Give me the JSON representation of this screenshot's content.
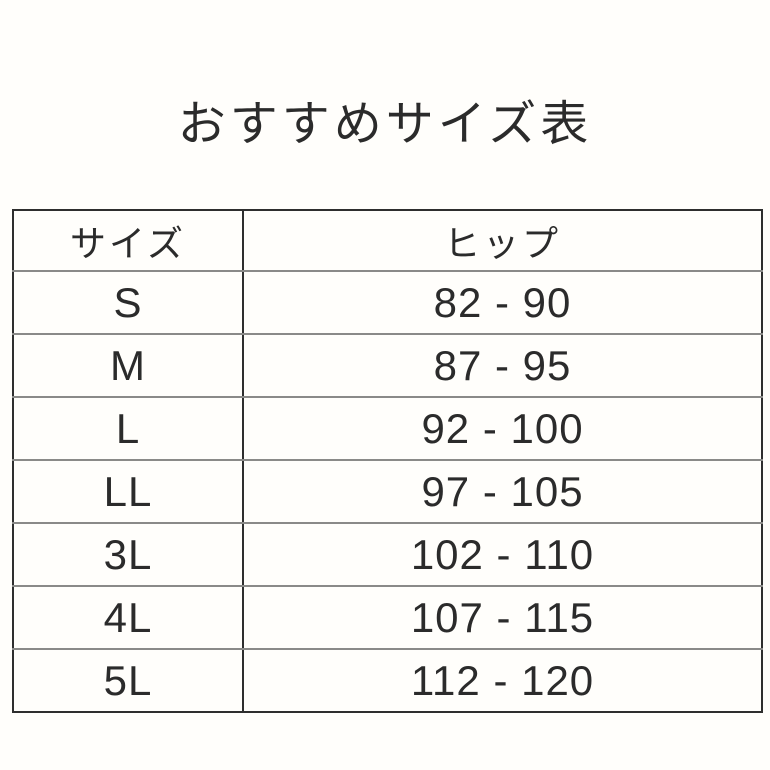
{
  "title": "おすすめサイズ表",
  "chart_data": {
    "type": "table",
    "title": "おすすめサイズ表",
    "columns": [
      "サイズ",
      "ヒップ"
    ],
    "rows": [
      [
        "S",
        "82 - 90"
      ],
      [
        "M",
        "87 - 95"
      ],
      [
        "L",
        "92 - 100"
      ],
      [
        "LL",
        "97 - 105"
      ],
      [
        "3L",
        "102 - 110"
      ],
      [
        "4L",
        "107 - 115"
      ],
      [
        "5L",
        "112 - 120"
      ]
    ]
  },
  "colors": {
    "background": "#fffefb",
    "text": "#2b2b2b",
    "outer_border": "#2e2e2e",
    "column_divider": "#2e2e2e",
    "row_divider": "#8a8a88"
  }
}
